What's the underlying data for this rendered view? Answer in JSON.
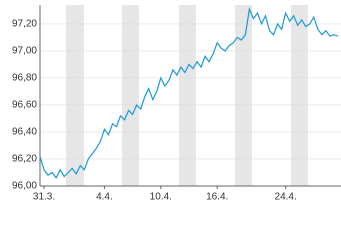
{
  "chart_data": {
    "type": "line",
    "color": "#1a9ad6",
    "grid": true,
    "categories": [
      null,
      "31.3.",
      null,
      null,
      null,
      null,
      null,
      null,
      null,
      null,
      null,
      null,
      null,
      null,
      null,
      null,
      "4.4.",
      null,
      null,
      null,
      null,
      null,
      null,
      null,
      null,
      null,
      null,
      null,
      null,
      null,
      "10.4.",
      null,
      null,
      null,
      null,
      null,
      null,
      null,
      null,
      null,
      null,
      null,
      null,
      null,
      "16.4.",
      null,
      null,
      null,
      null,
      null,
      null,
      null,
      null,
      null,
      null,
      null,
      null,
      null,
      null,
      null,
      null,
      "24.4.",
      null,
      null,
      null,
      null,
      null,
      null,
      null,
      null,
      null,
      null,
      null,
      null,
      null
    ],
    "values": [
      96.22,
      96.12,
      96.08,
      96.1,
      96.06,
      96.12,
      96.07,
      96.1,
      96.13,
      96.09,
      96.15,
      96.12,
      96.2,
      96.24,
      96.28,
      96.33,
      96.42,
      96.38,
      96.46,
      96.44,
      96.52,
      96.49,
      96.56,
      96.53,
      96.6,
      96.57,
      96.66,
      96.72,
      96.64,
      96.7,
      96.8,
      96.74,
      96.78,
      96.86,
      96.82,
      96.88,
      96.84,
      96.9,
      96.87,
      96.92,
      96.88,
      96.96,
      96.92,
      96.98,
      97.06,
      97.02,
      97.0,
      97.04,
      97.06,
      97.1,
      97.08,
      97.12,
      97.31,
      97.24,
      97.28,
      97.2,
      97.26,
      97.15,
      97.12,
      97.2,
      97.16,
      97.28,
      97.22,
      97.26,
      97.19,
      97.23,
      97.18,
      97.2,
      97.25,
      97.16,
      97.12,
      97.15,
      97.11,
      97.12,
      97.11
    ],
    "ylim": [
      96.0,
      97.34
    ],
    "yticks": [
      {
        "value": 96.0,
        "label": "96,00"
      },
      {
        "value": 96.2,
        "label": "96,20"
      },
      {
        "value": 96.4,
        "label": "96,40"
      },
      {
        "value": 96.6,
        "label": "96,60"
      },
      {
        "value": 96.8,
        "label": "96,80"
      },
      {
        "value": 97.0,
        "label": "97,00"
      },
      {
        "value": 97.2,
        "label": "97,20"
      }
    ]
  }
}
